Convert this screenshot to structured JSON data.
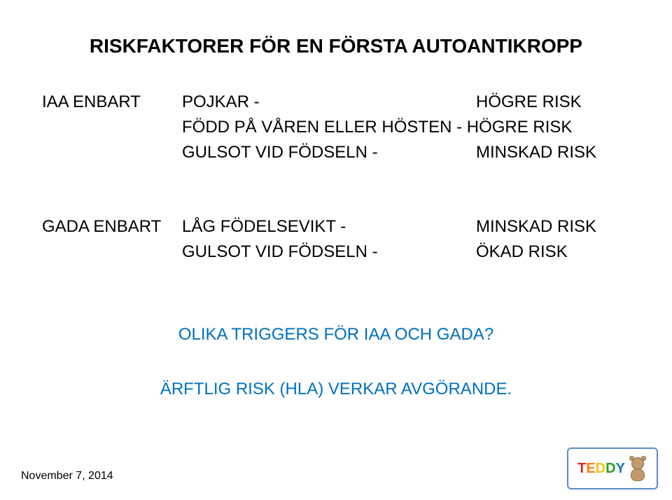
{
  "title": "RISKFAKTORER FÖR EN FÖRSTA AUTOANTIKROPP",
  "section1": {
    "label": "IAA ENBART",
    "rows": [
      {
        "factor": "POJKAR -",
        "result": "HÖGRE RISK"
      },
      {
        "factor": "FÖDD PÅ VÅREN ELLER HÖSTEN  -  HÖGRE RISK",
        "result": ""
      },
      {
        "factor": "GULSOT VID FÖDSELN -",
        "result": "MINSKAD RISK"
      }
    ]
  },
  "section2": {
    "label": "GADA ENBART",
    "rows": [
      {
        "factor": "LÅG FÖDELSEVIKT        -",
        "result": "MINSKAD RISK"
      },
      {
        "factor": "GULSOT VID FÖDSELN -",
        "result": "ÖKAD RISK"
      }
    ]
  },
  "question": "OLIKA TRIGGERS FÖR IAA OCH GADA?",
  "answer": "ÄRFTLIG RISK (HLA) VERKAR AVGÖRANDE.",
  "footer_date": "November 7, 2014",
  "logo_text": "TEDDY",
  "colors": {
    "blue_text": "#0070c0",
    "black_text": "#000000",
    "background": "#ffffff"
  }
}
